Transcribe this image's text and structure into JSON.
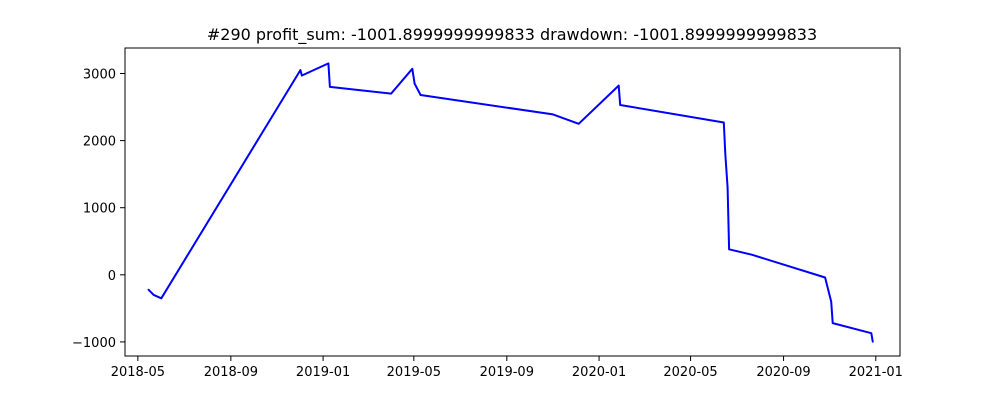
{
  "chart_data": {
    "type": "line",
    "title": "#290   profit_sum: -1001.8999999999833 drawdown: -1001.8999999999833",
    "xlabel": "",
    "ylabel": "",
    "x_ticks": [
      "2018-05",
      "2018-09",
      "2019-01",
      "2019-05",
      "2019-09",
      "2020-01",
      "2020-05",
      "2020-09",
      "2021-01"
    ],
    "y_ticks": [
      -1000,
      0,
      1000,
      2000,
      3000
    ],
    "y_tick_labels": [
      "−1000",
      "0",
      "1000",
      "2000",
      "3000"
    ],
    "xlim": [
      "2018-04-14",
      "2021-02-02"
    ],
    "ylim": [
      -1210,
      3380
    ],
    "grid": false,
    "legend": null,
    "series": [
      {
        "color": "#0000ff",
        "points": [
          {
            "x": "2018-05-15",
            "y": -220
          },
          {
            "x": "2018-05-22",
            "y": -300
          },
          {
            "x": "2018-06-01",
            "y": -350
          },
          {
            "x": "2018-12-02",
            "y": 3050
          },
          {
            "x": "2018-12-04",
            "y": 2970
          },
          {
            "x": "2019-01-08",
            "y": 3150
          },
          {
            "x": "2019-01-10",
            "y": 2800
          },
          {
            "x": "2019-04-01",
            "y": 2700
          },
          {
            "x": "2019-04-29",
            "y": 3070
          },
          {
            "x": "2019-05-02",
            "y": 2850
          },
          {
            "x": "2019-05-10",
            "y": 2680
          },
          {
            "x": "2019-11-01",
            "y": 2390
          },
          {
            "x": "2019-12-05",
            "y": 2250
          },
          {
            "x": "2020-01-27",
            "y": 2820
          },
          {
            "x": "2020-01-29",
            "y": 2530
          },
          {
            "x": "2020-06-14",
            "y": 2270
          },
          {
            "x": "2020-06-16",
            "y": 1800
          },
          {
            "x": "2020-06-19",
            "y": 1300
          },
          {
            "x": "2020-06-21",
            "y": 380
          },
          {
            "x": "2020-07-21",
            "y": 300
          },
          {
            "x": "2020-10-26",
            "y": -40
          },
          {
            "x": "2020-11-03",
            "y": -400
          },
          {
            "x": "2020-11-05",
            "y": -720
          },
          {
            "x": "2020-12-26",
            "y": -870
          },
          {
            "x": "2020-12-28",
            "y": -1000
          }
        ]
      }
    ]
  }
}
